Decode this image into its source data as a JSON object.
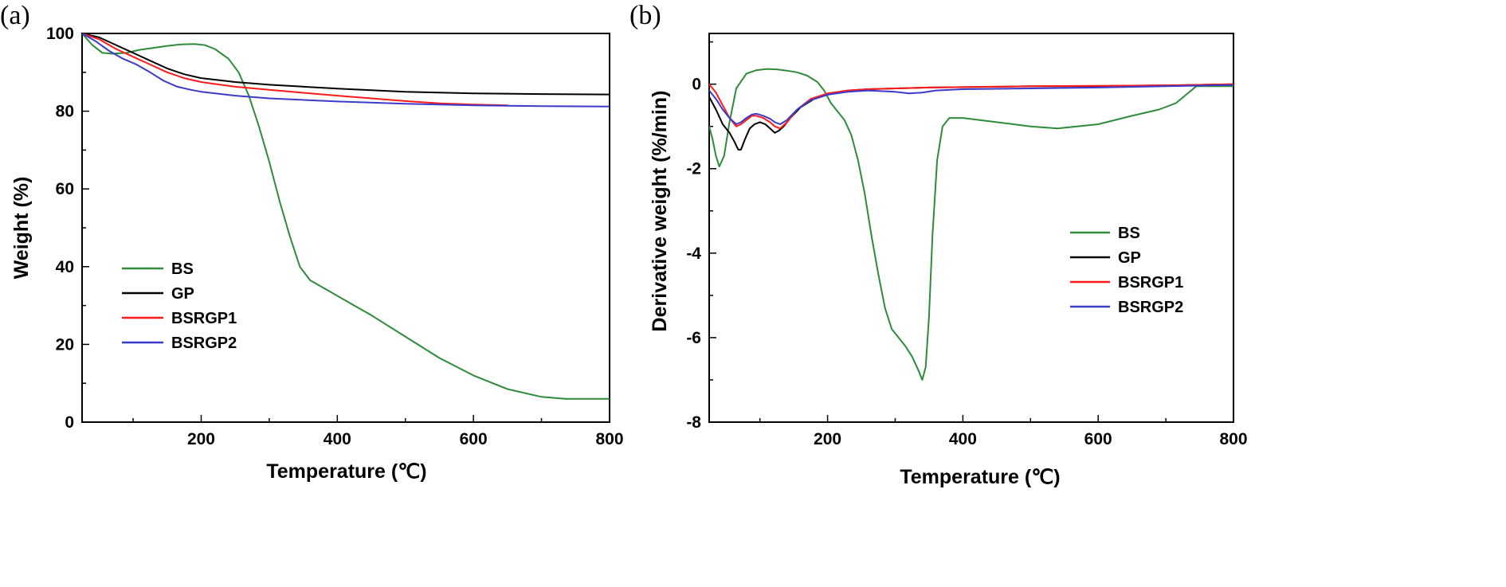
{
  "chart_data": [
    {
      "id": "a",
      "panel_label": "(a)",
      "type": "line",
      "xlabel": "Temperature (℃)",
      "ylabel": "Weight (%)",
      "xlim": [
        25,
        800
      ],
      "ylim": [
        0,
        100
      ],
      "xticks": [
        200,
        400,
        600,
        800
      ],
      "yticks": [
        0,
        20,
        40,
        60,
        80,
        100
      ],
      "legend_position": "lower-left",
      "series": [
        {
          "name": "BS",
          "color": "#2e8b3a",
          "x": [
            25,
            40,
            55,
            70,
            90,
            110,
            130,
            150,
            170,
            190,
            205,
            220,
            240,
            255,
            270,
            285,
            300,
            315,
            330,
            345,
            360,
            370,
            390,
            420,
            450,
            500,
            550,
            600,
            650,
            700,
            735,
            800
          ],
          "y": [
            100,
            97,
            95,
            94.8,
            95,
            95.8,
            96.3,
            96.8,
            97.2,
            97.3,
            97,
            96,
            93.5,
            90,
            84,
            76,
            67,
            57,
            48,
            40,
            36.5,
            35.5,
            33.5,
            30.5,
            27.5,
            22,
            16.5,
            12,
            8.5,
            6.5,
            6,
            6
          ]
        },
        {
          "name": "GP",
          "color": "#000000",
          "x": [
            25,
            50,
            75,
            100,
            125,
            150,
            175,
            200,
            250,
            300,
            400,
            500,
            600,
            700,
            800
          ],
          "y": [
            100,
            99,
            97,
            95,
            93,
            91,
            89.5,
            88.5,
            87.5,
            86.8,
            85.8,
            85,
            84.6,
            84.4,
            84.3
          ]
        },
        {
          "name": "BSRGP1",
          "color": "#ff1a1a",
          "x": [
            25,
            50,
            75,
            100,
            125,
            150,
            175,
            200,
            250,
            300,
            400,
            500,
            550,
            600,
            650
          ],
          "y": [
            100,
            98.5,
            96,
            94,
            92,
            90,
            88.5,
            87.5,
            86.3,
            85.5,
            84,
            82.6,
            82,
            81.7,
            81.5
          ]
        },
        {
          "name": "BSRGP2",
          "color": "#3a3acd",
          "x": [
            25,
            45,
            65,
            85,
            105,
            125,
            145,
            165,
            185,
            200,
            250,
            300,
            400,
            500,
            600,
            700,
            800
          ],
          "y": [
            100,
            98,
            95.5,
            93.5,
            92,
            90,
            87.8,
            86.3,
            85.5,
            85,
            84,
            83.3,
            82.5,
            81.9,
            81.5,
            81.3,
            81.2
          ]
        }
      ]
    },
    {
      "id": "b",
      "panel_label": "(b)",
      "type": "line",
      "xlabel": "Temperature (℃)",
      "ylabel": "Derivative weight (%/min)",
      "xlim": [
        25,
        800
      ],
      "ylim": [
        -8,
        1.2
      ],
      "xticks": [
        200,
        400,
        600,
        800
      ],
      "yticks": [
        -8,
        -6,
        -4,
        -2,
        0
      ],
      "legend_position": "right",
      "series": [
        {
          "name": "BS",
          "color": "#2e8b3a",
          "x": [
            25,
            30,
            35,
            40,
            47,
            55,
            65,
            80,
            95,
            110,
            125,
            140,
            155,
            170,
            185,
            195,
            205,
            215,
            225,
            235,
            245,
            255,
            265,
            275,
            285,
            295,
            305,
            315,
            325,
            335,
            340,
            345,
            350,
            355,
            362,
            370,
            380,
            400,
            450,
            500,
            540,
            600,
            650,
            690,
            715,
            730,
            745,
            800
          ],
          "y": [
            -1.0,
            -1.3,
            -1.7,
            -1.95,
            -1.7,
            -0.9,
            -0.1,
            0.25,
            0.33,
            0.36,
            0.35,
            0.32,
            0.28,
            0.2,
            0.05,
            -0.15,
            -0.45,
            -0.65,
            -0.85,
            -1.2,
            -1.8,
            -2.6,
            -3.6,
            -4.5,
            -5.3,
            -5.8,
            -6.0,
            -6.2,
            -6.45,
            -6.8,
            -7.0,
            -6.7,
            -5.5,
            -3.6,
            -1.8,
            -1.0,
            -0.8,
            -0.8,
            -0.9,
            -1.0,
            -1.05,
            -0.95,
            -0.75,
            -0.6,
            -0.45,
            -0.25,
            -0.05,
            -0.05
          ]
        },
        {
          "name": "GP",
          "color": "#000000",
          "x": [
            25,
            35,
            45,
            55,
            62,
            68,
            72,
            78,
            85,
            92,
            100,
            108,
            115,
            122,
            128,
            135,
            145,
            160,
            180,
            200,
            230,
            260,
            300,
            350,
            400,
            500,
            600,
            680,
            700,
            800
          ],
          "y": [
            -0.3,
            -0.6,
            -0.95,
            -1.15,
            -1.35,
            -1.55,
            -1.55,
            -1.3,
            -1.05,
            -0.95,
            -0.9,
            -0.95,
            -1.05,
            -1.15,
            -1.1,
            -1.0,
            -0.8,
            -0.55,
            -0.35,
            -0.25,
            -0.15,
            -0.12,
            -0.1,
            -0.08,
            -0.07,
            -0.05,
            -0.05,
            -0.03,
            -0.03,
            0.0
          ]
        },
        {
          "name": "BSRGP1",
          "color": "#ff1a1a",
          "x": [
            25,
            35,
            45,
            55,
            65,
            72,
            80,
            88,
            95,
            105,
            115,
            122,
            130,
            140,
            155,
            175,
            200,
            230,
            260,
            300,
            350,
            400,
            500,
            600,
            700,
            800
          ],
          "y": [
            0.0,
            -0.2,
            -0.5,
            -0.8,
            -1.0,
            -0.95,
            -0.85,
            -0.75,
            -0.75,
            -0.8,
            -0.9,
            -1.0,
            -1.05,
            -0.9,
            -0.6,
            -0.35,
            -0.22,
            -0.15,
            -0.12,
            -0.1,
            -0.08,
            -0.07,
            -0.05,
            -0.04,
            -0.03,
            0.0
          ]
        },
        {
          "name": "BSRGP2",
          "color": "#3a3acd",
          "x": [
            25,
            35,
            45,
            55,
            65,
            72,
            80,
            88,
            95,
            105,
            115,
            122,
            130,
            140,
            155,
            175,
            200,
            230,
            260,
            300,
            320,
            340,
            360,
            400,
            500,
            600,
            700,
            800
          ],
          "y": [
            -0.15,
            -0.35,
            -0.6,
            -0.8,
            -0.95,
            -0.9,
            -0.8,
            -0.72,
            -0.7,
            -0.75,
            -0.82,
            -0.9,
            -0.95,
            -0.85,
            -0.6,
            -0.38,
            -0.25,
            -0.18,
            -0.15,
            -0.18,
            -0.22,
            -0.2,
            -0.15,
            -0.12,
            -0.1,
            -0.08,
            -0.05,
            -0.02
          ]
        }
      ]
    }
  ]
}
